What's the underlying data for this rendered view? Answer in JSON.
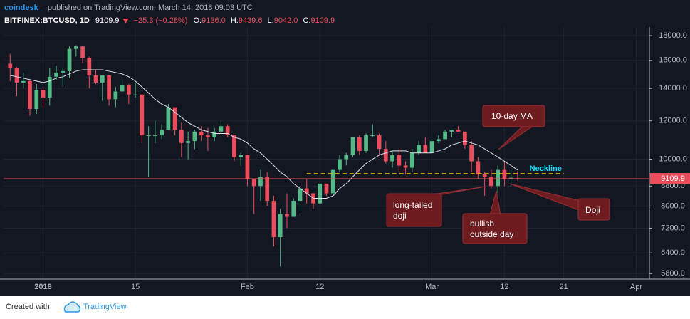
{
  "header": {
    "author": "coindesk_",
    "published": "published on TradingView.com, March 14, 2018 09:03 UTC",
    "symbol": "BITFINEX:BTCUSD, 1D",
    "price": "9109.9",
    "change": "−25.3 (−0.28%)",
    "ohlc": [
      {
        "key": "O:",
        "value": "9136.0"
      },
      {
        "key": "H:",
        "value": "9439.6"
      },
      {
        "key": "L:",
        "value": "9042.0"
      },
      {
        "key": "C:",
        "value": "9109.9"
      }
    ]
  },
  "chart_data": {
    "type": "candlestick",
    "log_scale": true,
    "grid": true,
    "up_color": "#53b987",
    "down_color": "#eb4d5c",
    "x": [
      "2017-12-27",
      "2017-12-28",
      "2017-12-29",
      "2017-12-30",
      "2017-12-31",
      "2018-01-01",
      "2018-01-02",
      "2018-01-03",
      "2018-01-04",
      "2018-01-05",
      "2018-01-06",
      "2018-01-07",
      "2018-01-08",
      "2018-01-09",
      "2018-01-10",
      "2018-01-11",
      "2018-01-12",
      "2018-01-13",
      "2018-01-14",
      "2018-01-15",
      "2018-01-16",
      "2018-01-17",
      "2018-01-18",
      "2018-01-19",
      "2018-01-20",
      "2018-01-21",
      "2018-01-22",
      "2018-01-23",
      "2018-01-24",
      "2018-01-25",
      "2018-01-26",
      "2018-01-27",
      "2018-01-28",
      "2018-01-29",
      "2018-01-30",
      "2018-01-31",
      "2018-02-01",
      "2018-02-02",
      "2018-02-03",
      "2018-02-04",
      "2018-02-05",
      "2018-02-06",
      "2018-02-07",
      "2018-02-08",
      "2018-02-09",
      "2018-02-10",
      "2018-02-11",
      "2018-02-12",
      "2018-02-13",
      "2018-02-14",
      "2018-02-15",
      "2018-02-16",
      "2018-02-17",
      "2018-02-18",
      "2018-02-19",
      "2018-02-20",
      "2018-02-21",
      "2018-02-22",
      "2018-02-23",
      "2018-02-24",
      "2018-02-25",
      "2018-02-26",
      "2018-02-27",
      "2018-02-28",
      "2018-03-01",
      "2018-03-02",
      "2018-03-03",
      "2018-03-04",
      "2018-03-05",
      "2018-03-06",
      "2018-03-07",
      "2018-03-08",
      "2018-03-09",
      "2018-03-10",
      "2018-03-11",
      "2018-03-12",
      "2018-03-13",
      "2018-03-14"
    ],
    "open": [
      15750,
      15400,
      14400,
      14500,
      12700,
      13900,
      13400,
      14800,
      15100,
      15200,
      16900,
      17100,
      16200,
      14900,
      14400,
      14900,
      13300,
      13800,
      14200,
      13600,
      13600,
      11200,
      11200,
      11200,
      11500,
      12800,
      11500,
      10800,
      10900,
      11400,
      11200,
      11100,
      11400,
      11700,
      11200,
      10100,
      10200,
      9100,
      8800,
      9200,
      8200,
      6900,
      7700,
      7600,
      8200,
      8700,
      8500,
      8100,
      8900,
      8500,
      9500,
      10000,
      10200,
      11100,
      10400,
      11200,
      11200,
      10500,
      9900,
      10200,
      9700,
      9600,
      10300,
      10700,
      10300,
      10900,
      11000,
      11400,
      11500,
      11400,
      10700,
      9900,
      9300,
      9200,
      8800,
      9500,
      9100,
      9136
    ],
    "high": [
      16500,
      15500,
      15100,
      14600,
      14300,
      14000,
      15400,
      15600,
      15400,
      17100,
      17200,
      17100,
      16300,
      15300,
      14900,
      14900,
      14100,
      14600,
      14300,
      14400,
      13600,
      11700,
      12000,
      11800,
      13000,
      12800,
      11900,
      11400,
      11500,
      11700,
      11600,
      11600,
      12000,
      11800,
      11200,
      10300,
      10200,
      9100,
      9500,
      9400,
      8400,
      7900,
      8500,
      8300,
      8700,
      9100,
      8500,
      8900,
      8900,
      9500,
      10200,
      10300,
      11100,
      11200,
      11300,
      11800,
      11300,
      10900,
      10400,
      10500,
      9900,
      10500,
      10900,
      11100,
      11000,
      11200,
      11500,
      11500,
      11700,
      11400,
      10900,
      10100,
      9400,
      9500,
      9700,
      9900,
      9500,
      9439.6
    ],
    "low": [
      14500,
      13500,
      14000,
      12300,
      12400,
      12800,
      12900,
      14600,
      14100,
      14700,
      16300,
      15800,
      14000,
      14300,
      13200,
      12900,
      12800,
      13800,
      13000,
      13400,
      10800,
      9200,
      10800,
      11000,
      11500,
      11200,
      10100,
      10000,
      10500,
      10900,
      10400,
      10900,
      11300,
      11100,
      9900,
      9700,
      8800,
      7700,
      8200,
      8000,
      6600,
      6000,
      7200,
      7600,
      7800,
      8100,
      7900,
      8100,
      8400,
      8500,
      9400,
      9700,
      10100,
      10200,
      10300,
      11100,
      10200,
      9800,
      9600,
      9400,
      9300,
      9400,
      10200,
      10300,
      10300,
      10800,
      11000,
      11100,
      11400,
      10500,
      9400,
      9100,
      8400,
      8700,
      8500,
      8800,
      8900,
      9042
    ],
    "close": [
      15400,
      14400,
      14500,
      12700,
      13900,
      13400,
      14800,
      15100,
      15200,
      16900,
      17100,
      16200,
      14900,
      14400,
      14900,
      13300,
      13800,
      14200,
      13600,
      13600,
      11200,
      11200,
      11200,
      11500,
      12800,
      11500,
      10800,
      10900,
      11400,
      11200,
      11100,
      11400,
      11700,
      11200,
      10100,
      10200,
      9100,
      8800,
      9200,
      8200,
      6900,
      7700,
      7600,
      8200,
      8700,
      8500,
      8100,
      8900,
      8500,
      9500,
      10000,
      10200,
      11100,
      10400,
      11200,
      11200,
      10500,
      9900,
      10200,
      9700,
      9600,
      10300,
      10700,
      10300,
      10900,
      11000,
      11400,
      11500,
      11400,
      10700,
      9900,
      9300,
      9200,
      8800,
      9500,
      9100,
      9150,
      9109.9
    ],
    "ma": {
      "color": "#e0e3eb",
      "values": [
        14900,
        14800,
        14700,
        14600,
        14500,
        14400,
        14500,
        14700,
        14800,
        15000,
        15200,
        15300,
        15300,
        15300,
        15300,
        15200,
        15100,
        15000,
        14800,
        14500,
        14100,
        13700,
        13300,
        13000,
        12800,
        12500,
        12200,
        11900,
        11700,
        11500,
        11400,
        11300,
        11300,
        11300,
        11100,
        11000,
        10800,
        10500,
        10300,
        10000,
        9700,
        9400,
        9200,
        8900,
        8700,
        8500,
        8300,
        8300,
        8300,
        8400,
        8700,
        8900,
        9200,
        9500,
        9800,
        10000,
        10200,
        10300,
        10400,
        10400,
        10400,
        10300,
        10300,
        10300,
        10300,
        10400,
        10500,
        10700,
        10800,
        10900,
        10800,
        10700,
        10500,
        10300,
        10100,
        9900,
        9700,
        9500
      ]
    },
    "neckline": {
      "label": "Neckline",
      "value": 9330,
      "x": [
        "2018-02-10",
        "2018-03-21"
      ],
      "color": "#f5d000"
    },
    "last_price_color": "#eb4d5c",
    "xlim": [
      "2017-12-26",
      "2018-04-03"
    ],
    "xticks": [
      {
        "value": "2018-01-01",
        "label": "2018"
      },
      {
        "value": "2018-01-15",
        "label": "15"
      },
      {
        "value": "2018-02-01",
        "label": "Feb"
      },
      {
        "value": "2018-02-12",
        "label": "12"
      },
      {
        "value": "2018-03-01",
        "label": "Mar"
      },
      {
        "value": "2018-03-12",
        "label": "12"
      },
      {
        "value": "2018-03-21",
        "label": "21"
      },
      {
        "value": "2018-04-01",
        "label": "Apr"
      }
    ],
    "ylim": [
      5650,
      18750
    ],
    "yticks": [
      {
        "value": 18000,
        "label": "18000.0"
      },
      {
        "value": 16000,
        "label": "16000.0"
      },
      {
        "value": 14000,
        "label": "14000.0"
      },
      {
        "value": 12000,
        "label": "12000.0"
      },
      {
        "value": 10000,
        "label": "10000.0"
      },
      {
        "value": 8800,
        "label": "8800.0"
      },
      {
        "value": 8000,
        "label": "8000.0"
      },
      {
        "value": 7200,
        "label": "7200.0"
      },
      {
        "value": 6400,
        "label": "6400.0"
      },
      {
        "value": 5800,
        "label": "5800.0"
      }
    ],
    "annotations": [
      "10-day MA",
      "long-tailed",
      "doji",
      "bullish",
      "outside day",
      "Doji"
    ]
  },
  "footer": {
    "created": "Created with",
    "brand": "TradingView"
  }
}
